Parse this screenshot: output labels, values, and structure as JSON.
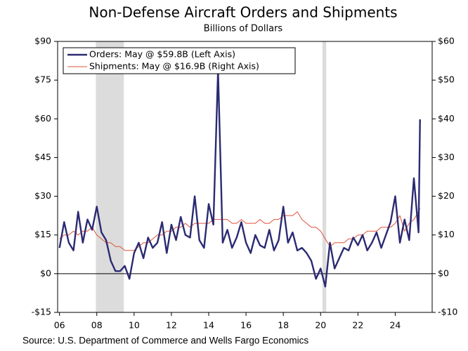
{
  "chart_data": {
    "type": "line",
    "title": "Non-Defense Aircraft Orders and Shipments",
    "subtitle": "Billions of Dollars",
    "source": "Source: U.S. Department of Commerce and Wells Fargo Economics",
    "x": [
      6.0,
      6.25,
      6.5,
      6.75,
      7.0,
      7.25,
      7.5,
      7.75,
      8.0,
      8.25,
      8.5,
      8.75,
      9.0,
      9.25,
      9.5,
      9.75,
      10.0,
      10.25,
      10.5,
      10.75,
      11.0,
      11.25,
      11.5,
      11.75,
      12.0,
      12.25,
      12.5,
      12.75,
      13.0,
      13.25,
      13.5,
      13.75,
      14.0,
      14.25,
      14.5,
      14.75,
      15.0,
      15.25,
      15.5,
      15.75,
      16.0,
      16.25,
      16.5,
      16.75,
      17.0,
      17.25,
      17.5,
      17.75,
      18.0,
      18.25,
      18.5,
      18.75,
      19.0,
      19.25,
      19.5,
      19.75,
      20.0,
      20.25,
      20.5,
      20.75,
      21.0,
      21.25,
      21.5,
      21.75,
      22.0,
      22.25,
      22.5,
      22.75,
      23.0,
      23.25,
      23.5,
      23.75,
      24.0,
      24.25,
      24.5,
      24.75,
      25.0,
      25.25,
      25.33
    ],
    "series": [
      {
        "name": "Orders: May @ $59.8B (Left Axis)",
        "color": "#2b2a72",
        "axis": "y",
        "values": [
          10,
          20,
          12,
          9,
          24,
          12,
          21,
          17,
          26,
          16,
          13,
          5,
          1,
          1,
          3,
          -2,
          8,
          12,
          6,
          14,
          10,
          12,
          20,
          8,
          19,
          13,
          22,
          15,
          14,
          30,
          13,
          10,
          27,
          19,
          79,
          12,
          17,
          10,
          14,
          20,
          12,
          8,
          15,
          11,
          10,
          17,
          9,
          13,
          26,
          12,
          16,
          9,
          10,
          8,
          5,
          -2,
          2,
          -5,
          12,
          2,
          6,
          10,
          9,
          14,
          11,
          15,
          9,
          12,
          16,
          10,
          15,
          20,
          30,
          12,
          21,
          13,
          37,
          16,
          59.8
        ]
      },
      {
        "name": "Shipments: May @ $16.9B (Right Axis)",
        "color": "#e0523a",
        "axis": "y2",
        "values": [
          9,
          10,
          10,
          11,
          10,
          11,
          11,
          12,
          10,
          9,
          8,
          8,
          7,
          7,
          6,
          6,
          6,
          7,
          8,
          8,
          9,
          10,
          10,
          11,
          11,
          12,
          12,
          13,
          12,
          13,
          13,
          13,
          13,
          14,
          14,
          14,
          14,
          13,
          13,
          14,
          13,
          13,
          13,
          14,
          13,
          13,
          14,
          14,
          15,
          15,
          15,
          16,
          14,
          13,
          12,
          12,
          11,
          9,
          7,
          8,
          8,
          8,
          9,
          9,
          10,
          10,
          11,
          11,
          11,
          12,
          12,
          12,
          13,
          15,
          11,
          13,
          14,
          16,
          16.9
        ]
      }
    ],
    "shaded_ranges": [
      [
        7.95,
        9.45
      ],
      [
        20.1,
        20.3
      ]
    ],
    "xlim": [
      5.9,
      25.98
    ],
    "xticks": [
      {
        "value": 6,
        "label": "06"
      },
      {
        "value": 8,
        "label": "08"
      },
      10,
      12,
      14,
      16,
      18,
      20,
      22,
      24
    ],
    "ylim": [
      -15,
      90
    ],
    "yticks": [
      {
        "value": -15,
        "label": "-$15"
      },
      {
        "value": 0,
        "label": "$0"
      },
      {
        "value": 15,
        "label": "$15"
      },
      {
        "value": 30,
        "label": "$30"
      },
      {
        "value": 45,
        "label": "$45"
      },
      {
        "value": 60,
        "label": "$60"
      },
      {
        "value": 75,
        "label": "$75"
      },
      {
        "value": 90,
        "label": "$90"
      }
    ],
    "y2lim": [
      -10,
      60
    ],
    "y2ticks": [
      {
        "value": -10,
        "label": "-$10"
      },
      {
        "value": 0,
        "label": "$0"
      },
      {
        "value": 10,
        "label": "$10"
      },
      {
        "value": 20,
        "label": "$20"
      },
      {
        "value": 30,
        "label": "$30"
      },
      {
        "value": 40,
        "label": "$40"
      },
      {
        "value": 50,
        "label": "$50"
      },
      {
        "value": 60,
        "label": "$60"
      }
    ],
    "legend": "upper left"
  }
}
